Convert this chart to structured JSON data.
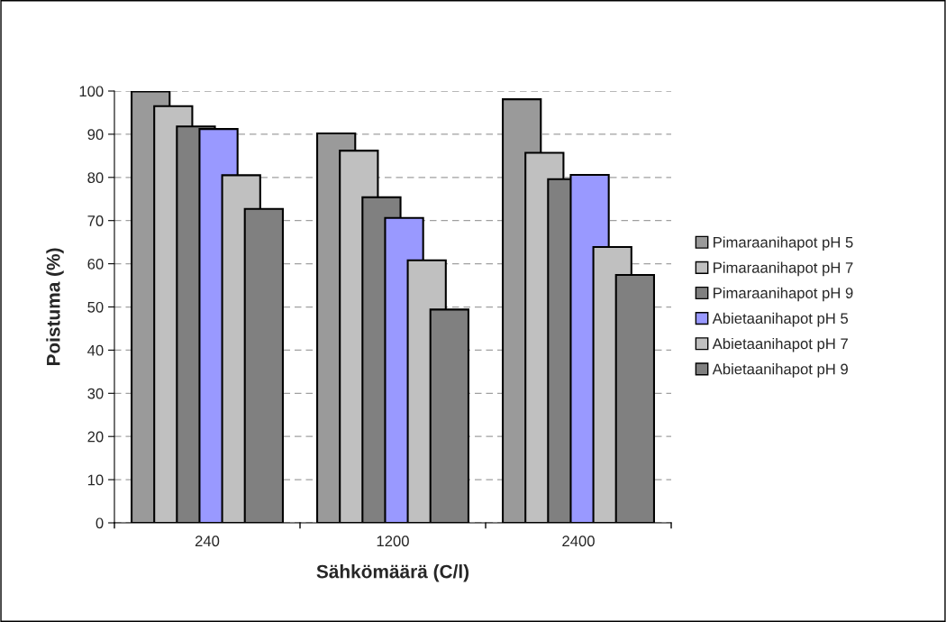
{
  "chart_data": {
    "type": "bar",
    "xlabel": "Sähkömäärä (C/l)",
    "ylabel": "Poistuma (%)",
    "categories": [
      "240",
      "1200",
      "2400"
    ],
    "series": [
      {
        "name": "Pimaraanihapot pH 5",
        "color": "#9a9a9a",
        "values": [
          99.9,
          90.2,
          98.1
        ]
      },
      {
        "name": "Pimaraanihapot pH 7",
        "color": "#c0c0c0",
        "values": [
          96.5,
          86.2,
          85.7
        ]
      },
      {
        "name": "Pimaraanihapot pH 9",
        "color": "#808080",
        "values": [
          91.8,
          75.4,
          79.6
        ]
      },
      {
        "name": "Abietaanihapot pH 5",
        "color": "#9999ff",
        "values": [
          91.2,
          70.6,
          80.6
        ]
      },
      {
        "name": "Abietaanihapot pH 7",
        "color": "#c0c0c0",
        "values": [
          80.5,
          60.8,
          63.9
        ]
      },
      {
        "name": "Abietaanihapot pH 9",
        "color": "#808080",
        "values": [
          72.7,
          49.4,
          57.4
        ]
      }
    ],
    "ylim": [
      0,
      100
    ],
    "yticks": [
      0,
      10,
      20,
      30,
      40,
      50,
      60,
      70,
      80,
      90,
      100
    ],
    "grid": "y",
    "legend": "right"
  }
}
